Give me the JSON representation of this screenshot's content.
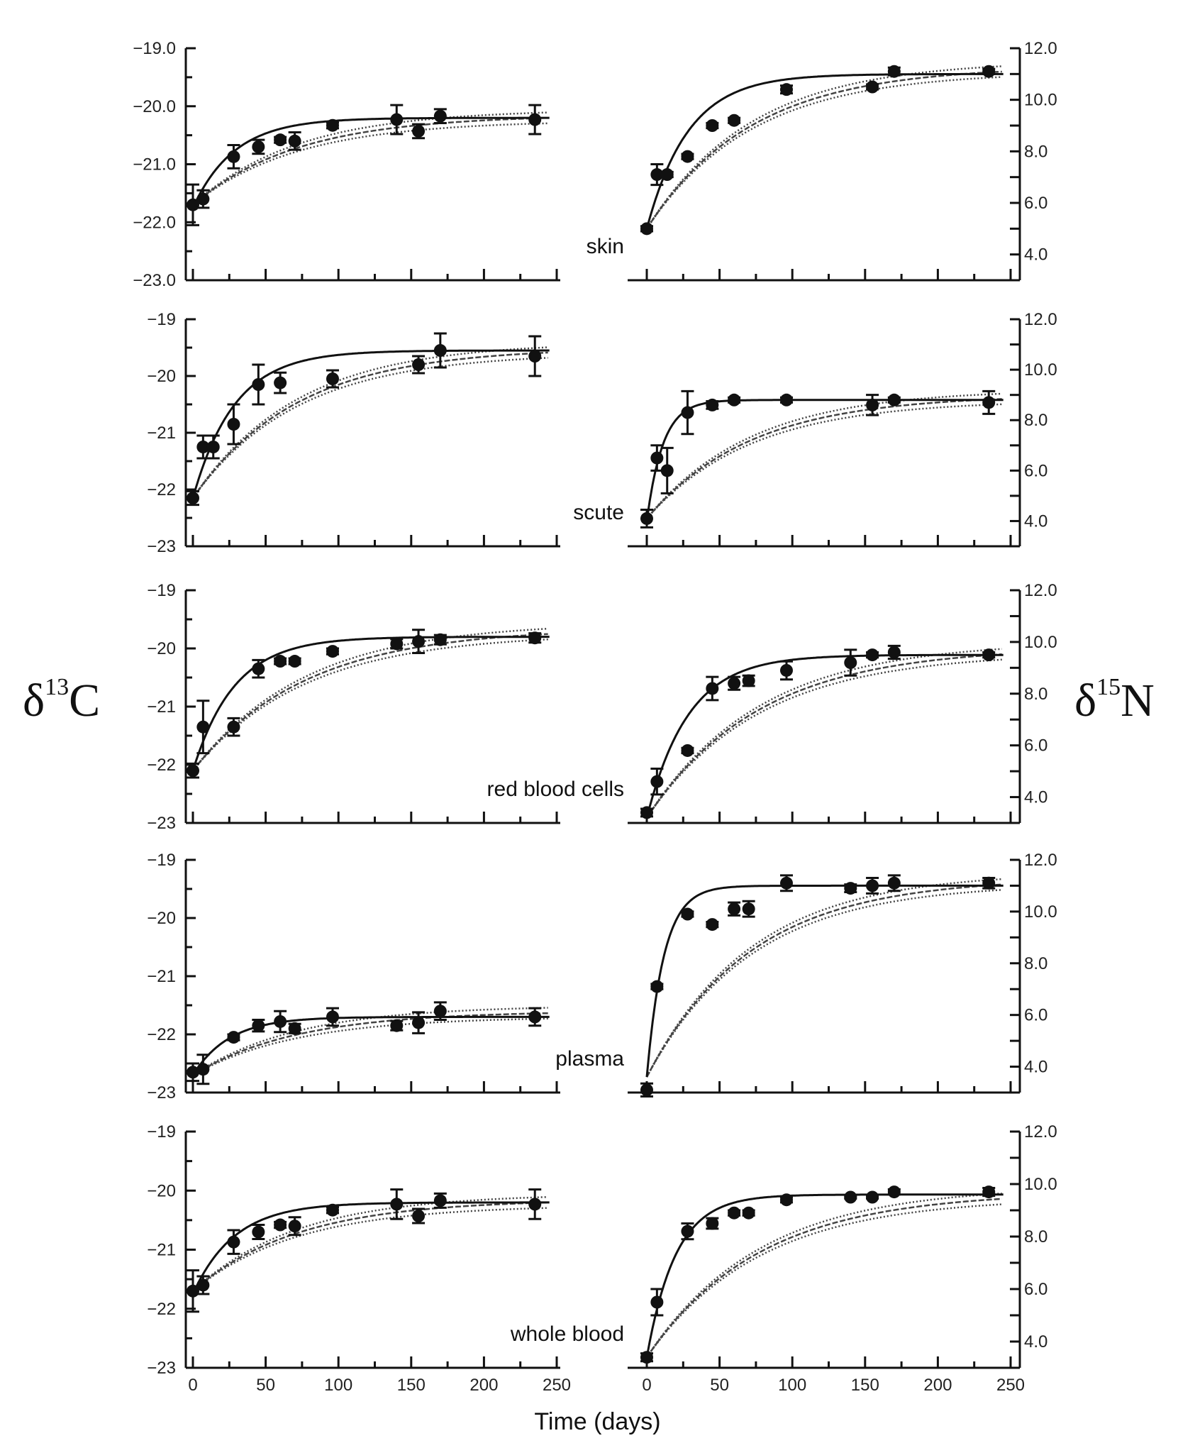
{
  "figure": {
    "left_ylabel": {
      "symbol": "δ",
      "sup": "13",
      "element": "C"
    },
    "right_ylabel": {
      "symbol": "δ",
      "sup": "15",
      "element": "N"
    },
    "xlabel": "Time (days)"
  },
  "chart_data": {
    "type": "scatter",
    "title": "",
    "xlabel": "Time (days)",
    "xlim": [
      0,
      250
    ],
    "xticks": [
      0,
      50,
      100,
      150,
      200,
      250
    ],
    "left_axis": {
      "ylabel": "δ13C",
      "ylim": [
        -23,
        -19
      ]
    },
    "right_axis": {
      "ylabel": "δ15N",
      "ylim": [
        3,
        12
      ],
      "yticks": [
        4.0,
        6.0,
        8.0,
        10.0,
        12.0
      ]
    },
    "series_styles": {
      "observed": "filled circles with ±SE error bars",
      "fit": "solid exponential fit line",
      "model": "dotted/dashed band of predicted curves"
    },
    "panels": [
      {
        "tissue": "skin",
        "d13C": {
          "yticks": [
            "-19.0",
            "-20.0",
            "-21.0",
            "-22.0",
            "-23.0"
          ],
          "points": [
            [
              0,
              -21.7,
              0.35
            ],
            [
              7,
              -21.6,
              0.15
            ],
            [
              28,
              -20.87,
              0.2
            ],
            [
              45,
              -20.7,
              0.12
            ],
            [
              60,
              -20.58,
              0.05
            ],
            [
              70,
              -20.6,
              0.15
            ],
            [
              96,
              -20.33,
              0.05
            ],
            [
              140,
              -20.23,
              0.25
            ],
            [
              155,
              -20.43,
              0.12
            ],
            [
              170,
              -20.17,
              0.12
            ],
            [
              235,
              -20.23,
              0.25
            ]
          ],
          "fit": {
            "start": -21.75,
            "plateau": -20.2,
            "k": 0.035
          },
          "model": {
            "start": -21.7,
            "plateau": -20.15,
            "k": 0.014
          }
        },
        "d15N": {
          "points": [
            [
              0,
              5.0,
              0.1
            ],
            [
              7,
              7.1,
              0.4
            ],
            [
              14,
              7.1,
              0.1
            ],
            [
              28,
              7.8,
              0.1
            ],
            [
              45,
              9.0,
              0.1
            ],
            [
              60,
              9.2,
              0.1
            ],
            [
              96,
              10.4,
              0.15
            ],
            [
              155,
              10.5,
              0.1
            ],
            [
              170,
              11.1,
              0.15
            ],
            [
              235,
              11.1,
              0.1
            ]
          ],
          "fit": {
            "start": 5.0,
            "plateau": 11.0,
            "k": 0.035
          },
          "model": {
            "start": 5.0,
            "plateau": 11.3,
            "k": 0.014
          }
        }
      },
      {
        "tissue": "scute",
        "d13C": {
          "yticks": [
            "-19",
            "-20",
            "-21",
            "-22",
            "-23"
          ],
          "points": [
            [
              0,
              -22.15,
              0.12
            ],
            [
              7,
              -21.25,
              0.2
            ],
            [
              14,
              -21.25,
              0.2
            ],
            [
              28,
              -20.85,
              0.35
            ],
            [
              45,
              -20.15,
              0.35
            ],
            [
              60,
              -20.12,
              0.18
            ],
            [
              96,
              -20.05,
              0.15
            ],
            [
              155,
              -19.8,
              0.15
            ],
            [
              170,
              -19.55,
              0.3
            ],
            [
              235,
              -19.65,
              0.35
            ]
          ],
          "fit": {
            "start": -22.15,
            "plateau": -19.55,
            "k": 0.035
          },
          "model": {
            "start": -22.15,
            "plateau": -19.5,
            "k": 0.014
          }
        },
        "d15N": {
          "points": [
            [
              0,
              4.1,
              0.35
            ],
            [
              7,
              6.5,
              0.5
            ],
            [
              14,
              6.0,
              0.9
            ],
            [
              28,
              8.3,
              0.85
            ],
            [
              45,
              8.6,
              0.15
            ],
            [
              60,
              8.8,
              0.1
            ],
            [
              96,
              8.8,
              0.1
            ],
            [
              155,
              8.6,
              0.4
            ],
            [
              170,
              8.8,
              0.1
            ],
            [
              235,
              8.7,
              0.45
            ]
          ],
          "fit": {
            "start": 4.0,
            "plateau": 8.8,
            "k": 0.09
          },
          "model": {
            "start": 4.1,
            "plateau": 9.0,
            "k": 0.014
          }
        }
      },
      {
        "tissue": "red blood cells",
        "d13C": {
          "yticks": [
            "-19",
            "-20",
            "-21",
            "-22",
            "-23"
          ],
          "points": [
            [
              0,
              -22.1,
              0.12
            ],
            [
              7,
              -21.35,
              0.45
            ],
            [
              28,
              -21.35,
              0.15
            ],
            [
              45,
              -20.35,
              0.15
            ],
            [
              60,
              -20.22,
              0.05
            ],
            [
              70,
              -20.22,
              0.05
            ],
            [
              96,
              -20.05,
              0.05
            ],
            [
              140,
              -19.92,
              0.08
            ],
            [
              155,
              -19.88,
              0.2
            ],
            [
              170,
              -19.85,
              0.08
            ],
            [
              235,
              -19.82,
              0.08
            ]
          ],
          "fit": {
            "start": -22.1,
            "plateau": -19.8,
            "k": 0.035
          },
          "model": {
            "start": -22.1,
            "plateau": -19.65,
            "k": 0.013
          }
        },
        "d15N": {
          "points": [
            [
              0,
              3.4,
              0.15
            ],
            [
              7,
              4.6,
              0.5
            ],
            [
              28,
              5.8,
              0.1
            ],
            [
              45,
              8.2,
              0.45
            ],
            [
              60,
              8.4,
              0.25
            ],
            [
              70,
              8.5,
              0.2
            ],
            [
              96,
              8.9,
              0.35
            ],
            [
              140,
              9.2,
              0.5
            ],
            [
              155,
              9.5,
              0.1
            ],
            [
              170,
              9.6,
              0.25
            ],
            [
              235,
              9.5,
              0.1
            ]
          ],
          "fit": {
            "start": 3.2,
            "plateau": 9.5,
            "k": 0.035
          },
          "model": {
            "start": 3.2,
            "plateau": 9.8,
            "k": 0.013
          }
        }
      },
      {
        "tissue": "plasma",
        "d13C": {
          "yticks": [
            "-19",
            "-20",
            "-21",
            "-22",
            "-23"
          ],
          "points": [
            [
              0,
              -22.65,
              0.15
            ],
            [
              7,
              -22.6,
              0.25
            ],
            [
              28,
              -22.05,
              0.05
            ],
            [
              45,
              -21.85,
              0.1
            ],
            [
              60,
              -21.78,
              0.18
            ],
            [
              70,
              -21.9,
              0.08
            ],
            [
              96,
              -21.7,
              0.15
            ],
            [
              140,
              -21.85,
              0.08
            ],
            [
              155,
              -21.8,
              0.18
            ],
            [
              170,
              -21.6,
              0.15
            ],
            [
              235,
              -21.7,
              0.15
            ]
          ],
          "fit": {
            "start": -22.7,
            "plateau": -21.7,
            "k": 0.04
          },
          "model": {
            "start": -22.7,
            "plateau": -21.6,
            "k": 0.014
          }
        },
        "d15N": {
          "points": [
            [
              0,
              3.1,
              0.25
            ],
            [
              7,
              7.1,
              0.1
            ],
            [
              28,
              9.9,
              0.1
            ],
            [
              45,
              9.5,
              0.1
            ],
            [
              60,
              10.1,
              0.25
            ],
            [
              70,
              10.1,
              0.3
            ],
            [
              96,
              11.1,
              0.3
            ],
            [
              140,
              10.9,
              0.15
            ],
            [
              155,
              11.0,
              0.3
            ],
            [
              170,
              11.1,
              0.3
            ],
            [
              235,
              11.1,
              0.2
            ]
          ],
          "fit": {
            "start": 3.6,
            "plateau": 11.0,
            "k": 0.085
          },
          "model": {
            "start": 3.6,
            "plateau": 11.3,
            "k": 0.014
          }
        }
      },
      {
        "tissue": "whole blood",
        "d13C": {
          "yticks": [
            "-19",
            "-20",
            "-21",
            "-22",
            "-23"
          ],
          "points": [
            [
              0,
              -21.7,
              0.35
            ],
            [
              7,
              -21.6,
              0.15
            ],
            [
              28,
              -20.87,
              0.2
            ],
            [
              45,
              -20.7,
              0.12
            ],
            [
              60,
              -20.58,
              0.05
            ],
            [
              70,
              -20.6,
              0.15
            ],
            [
              96,
              -20.33,
              0.05
            ],
            [
              140,
              -20.23,
              0.25
            ],
            [
              155,
              -20.43,
              0.12
            ],
            [
              170,
              -20.17,
              0.12
            ],
            [
              235,
              -20.23,
              0.25
            ]
          ],
          "fit": {
            "start": -21.75,
            "plateau": -20.2,
            "k": 0.035
          },
          "model": {
            "start": -21.7,
            "plateau": -20.15,
            "k": 0.014
          }
        },
        "d15N": {
          "points": [
            [
              0,
              3.4,
              0.15
            ],
            [
              7,
              5.5,
              0.5
            ],
            [
              28,
              8.2,
              0.3
            ],
            [
              45,
              8.5,
              0.2
            ],
            [
              60,
              8.9,
              0.1
            ],
            [
              70,
              8.9,
              0.1
            ],
            [
              96,
              9.4,
              0.1
            ],
            [
              140,
              9.5,
              0.05
            ],
            [
              155,
              9.5,
              0.05
            ],
            [
              170,
              9.7,
              0.1
            ],
            [
              235,
              9.7,
              0.15
            ]
          ],
          "fit": {
            "start": 3.4,
            "plateau": 9.6,
            "k": 0.05
          },
          "model": {
            "start": 3.4,
            "plateau": 9.7,
            "k": 0.013
          }
        }
      }
    ]
  }
}
